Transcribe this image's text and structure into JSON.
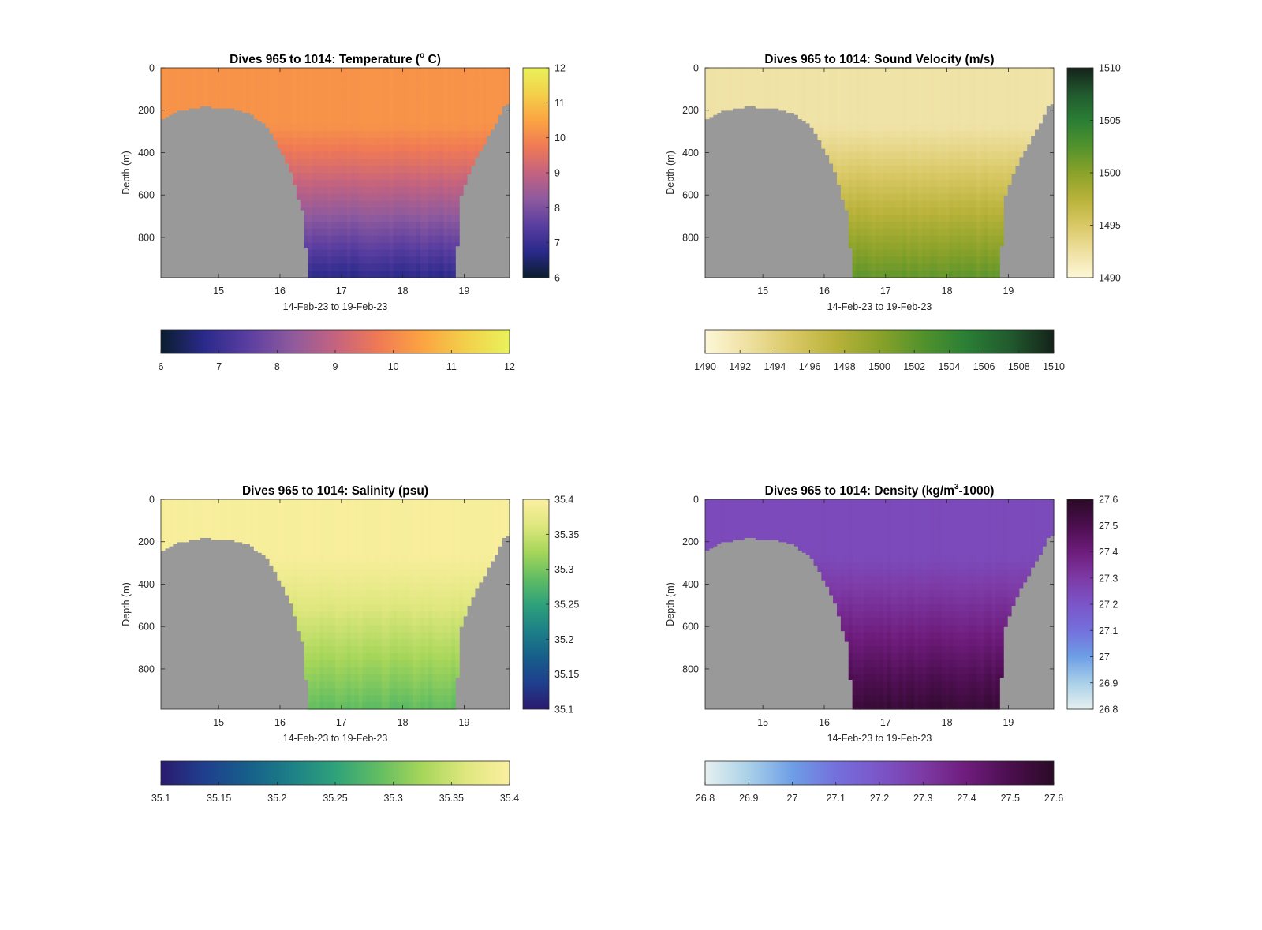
{
  "figure": {
    "background": "#ffffff",
    "land_color": "#999999",
    "xlabel": "14-Feb-23 to 19-Feb-23",
    "ylabel": "Depth (m)"
  },
  "chart_data": [
    {
      "type": "heatmap",
      "title": "Dives 965 to 1014: Temperature (",
      "title_super": "o",
      "title_suffix": " C)",
      "xlabel": "14-Feb-23 to 19-Feb-23",
      "ylabel": "Depth (m)",
      "x_ticks": [
        "15",
        "16",
        "17",
        "18",
        "19"
      ],
      "x_tick_values": [
        15,
        16,
        17,
        18,
        19
      ],
      "xlim": [
        14.06,
        19.74
      ],
      "y_ticks": [
        "0",
        "200",
        "400",
        "600",
        "800"
      ],
      "y_tick_values": [
        0,
        200,
        400,
        600,
        800
      ],
      "ylim": [
        0,
        990
      ],
      "y_reversed": true,
      "colormap": [
        "#0b1d2e",
        "#2a2a8a",
        "#5a3ea0",
        "#8e5a9e",
        "#c4637f",
        "#f07a55",
        "#fba441",
        "#f3d04a",
        "#e9f25a"
      ],
      "clim": [
        6,
        12
      ],
      "colorbar_ticks": [
        "6",
        "7",
        "8",
        "9",
        "10",
        "11",
        "12"
      ],
      "colorbar_tick_values": [
        6,
        7,
        8,
        9,
        10,
        11,
        12
      ],
      "surface_value": 10.2,
      "deep_value": 6.9,
      "deep_orientation": "low",
      "seabed_depth": [
        [
          14.06,
          240
        ],
        [
          14.25,
          210
        ],
        [
          14.5,
          195
        ],
        [
          14.75,
          180
        ],
        [
          15.0,
          190
        ],
        [
          15.25,
          195
        ],
        [
          15.5,
          215
        ],
        [
          15.75,
          265
        ],
        [
          15.9,
          330
        ],
        [
          16.05,
          410
        ],
        [
          16.2,
          510
        ],
        [
          16.3,
          620
        ],
        [
          16.4,
          700
        ],
        [
          16.45,
          990
        ],
        [
          18.85,
          990
        ],
        [
          18.95,
          600
        ],
        [
          19.1,
          480
        ],
        [
          19.25,
          400
        ],
        [
          19.4,
          320
        ],
        [
          19.55,
          240
        ],
        [
          19.65,
          180
        ],
        [
          19.74,
          165
        ]
      ]
    },
    {
      "type": "heatmap",
      "title": "Dives 965 to 1014: Sound Velocity (m/s)",
      "title_super": "",
      "title_suffix": "",
      "xlabel": "14-Feb-23 to 19-Feb-23",
      "ylabel": "Depth (m)",
      "x_ticks": [
        "15",
        "16",
        "17",
        "18",
        "19"
      ],
      "x_tick_values": [
        15,
        16,
        17,
        18,
        19
      ],
      "xlim": [
        14.06,
        19.74
      ],
      "y_ticks": [
        "0",
        "200",
        "400",
        "600",
        "800"
      ],
      "y_tick_values": [
        0,
        200,
        400,
        600,
        800
      ],
      "ylim": [
        0,
        990
      ],
      "y_reversed": true,
      "colormap": [
        "#fdf7d8",
        "#eee0a0",
        "#d9c865",
        "#b8b23a",
        "#8aa22a",
        "#52922c",
        "#2a7e35",
        "#215a2e",
        "#15221a"
      ],
      "clim": [
        1490,
        1510
      ],
      "colorbar_ticks": [
        "1490",
        "1495",
        "1500",
        "1505",
        "1510"
      ],
      "colorbar_tick_values": [
        1490,
        1495,
        1500,
        1505,
        1510
      ],
      "colorbar_h_ticks": [
        "1490",
        "1492",
        "1494",
        "1496",
        "1498",
        "1500",
        "1502",
        "1504",
        "1506",
        "1508",
        "1510"
      ],
      "colorbar_h_tick_values": [
        1490,
        1492,
        1494,
        1496,
        1498,
        1500,
        1502,
        1504,
        1506,
        1508,
        1510
      ],
      "surface_value": 1492.2,
      "deep_value": 1501.5,
      "deep_orientation": "high",
      "seabed_depth": [
        [
          14.06,
          240
        ],
        [
          14.25,
          210
        ],
        [
          14.5,
          195
        ],
        [
          14.75,
          180
        ],
        [
          15.0,
          190
        ],
        [
          15.25,
          195
        ],
        [
          15.5,
          215
        ],
        [
          15.75,
          265
        ],
        [
          15.9,
          330
        ],
        [
          16.05,
          410
        ],
        [
          16.2,
          510
        ],
        [
          16.3,
          620
        ],
        [
          16.4,
          700
        ],
        [
          16.45,
          990
        ],
        [
          18.85,
          990
        ],
        [
          18.95,
          600
        ],
        [
          19.1,
          480
        ],
        [
          19.25,
          400
        ],
        [
          19.4,
          320
        ],
        [
          19.55,
          240
        ],
        [
          19.65,
          180
        ],
        [
          19.74,
          165
        ]
      ]
    },
    {
      "type": "heatmap",
      "title": "Dives 965 to 1014: Salinity (psu)",
      "title_super": "",
      "title_suffix": "",
      "xlabel": "14-Feb-23 to 19-Feb-23",
      "ylabel": "Depth (m)",
      "x_ticks": [
        "15",
        "16",
        "17",
        "18",
        "19"
      ],
      "x_tick_values": [
        15,
        16,
        17,
        18,
        19
      ],
      "xlim": [
        14.06,
        19.74
      ],
      "y_ticks": [
        "0",
        "200",
        "400",
        "600",
        "800"
      ],
      "y_tick_values": [
        0,
        200,
        400,
        600,
        800
      ],
      "ylim": [
        0,
        990
      ],
      "y_reversed": true,
      "colormap": [
        "#2b1a6f",
        "#1f3f8e",
        "#165f8a",
        "#1d8087",
        "#2ea27a",
        "#62bd62",
        "#a6d65a",
        "#dfe77e",
        "#fbefa0"
      ],
      "clim": [
        35.1,
        35.4
      ],
      "colorbar_ticks": [
        "35.1",
        "35.15",
        "35.2",
        "35.25",
        "35.3",
        "35.35",
        "35.4"
      ],
      "colorbar_tick_values": [
        35.1,
        35.15,
        35.2,
        35.25,
        35.3,
        35.35,
        35.4
      ],
      "surface_value": 35.395,
      "deep_value": 35.29,
      "deep_orientation": "low",
      "seabed_depth": [
        [
          14.06,
          240
        ],
        [
          14.25,
          210
        ],
        [
          14.5,
          195
        ],
        [
          14.75,
          180
        ],
        [
          15.0,
          190
        ],
        [
          15.25,
          195
        ],
        [
          15.5,
          215
        ],
        [
          15.75,
          265
        ],
        [
          15.9,
          330
        ],
        [
          16.05,
          410
        ],
        [
          16.2,
          510
        ],
        [
          16.3,
          620
        ],
        [
          16.4,
          700
        ],
        [
          16.45,
          990
        ],
        [
          18.85,
          990
        ],
        [
          18.95,
          600
        ],
        [
          19.1,
          480
        ],
        [
          19.25,
          400
        ],
        [
          19.4,
          320
        ],
        [
          19.55,
          240
        ],
        [
          19.65,
          180
        ],
        [
          19.74,
          165
        ]
      ]
    },
    {
      "type": "heatmap",
      "title": "Dives 965 to 1014: Density (kg/m",
      "title_super": "3",
      "title_suffix": "-1000)",
      "xlabel": "14-Feb-23 to 19-Feb-23",
      "ylabel": "Depth (m)",
      "x_ticks": [
        "15",
        "16",
        "17",
        "18",
        "19"
      ],
      "x_tick_values": [
        15,
        16,
        17,
        18,
        19
      ],
      "xlim": [
        14.06,
        19.74
      ],
      "y_ticks": [
        "0",
        "200",
        "400",
        "600",
        "800"
      ],
      "y_tick_values": [
        0,
        200,
        400,
        600,
        800
      ],
      "ylim": [
        0,
        990
      ],
      "y_reversed": true,
      "colormap": [
        "#e6f0f0",
        "#a9d0e8",
        "#6e9ee6",
        "#7470dc",
        "#7b55c8",
        "#7d3aa5",
        "#6e1c7c",
        "#4b0e4e",
        "#2a0a26"
      ],
      "clim": [
        26.8,
        27.6
      ],
      "colorbar_ticks": [
        "26.8",
        "26.9",
        "27",
        "27.1",
        "27.2",
        "27.3",
        "27.4",
        "27.5",
        "27.6"
      ],
      "colorbar_tick_values": [
        26.8,
        26.9,
        27.0,
        27.1,
        27.2,
        27.3,
        27.4,
        27.5,
        27.6
      ],
      "surface_value": 27.24,
      "deep_value": 27.55,
      "deep_orientation": "high",
      "seabed_depth": [
        [
          14.06,
          240
        ],
        [
          14.25,
          210
        ],
        [
          14.5,
          195
        ],
        [
          14.75,
          180
        ],
        [
          15.0,
          190
        ],
        [
          15.25,
          195
        ],
        [
          15.5,
          215
        ],
        [
          15.75,
          265
        ],
        [
          15.9,
          330
        ],
        [
          16.05,
          410
        ],
        [
          16.2,
          510
        ],
        [
          16.3,
          620
        ],
        [
          16.4,
          700
        ],
        [
          16.45,
          990
        ],
        [
          18.85,
          990
        ],
        [
          18.95,
          600
        ],
        [
          19.1,
          480
        ],
        [
          19.25,
          400
        ],
        [
          19.4,
          320
        ],
        [
          19.55,
          240
        ],
        [
          19.65,
          180
        ],
        [
          19.74,
          165
        ]
      ]
    }
  ]
}
